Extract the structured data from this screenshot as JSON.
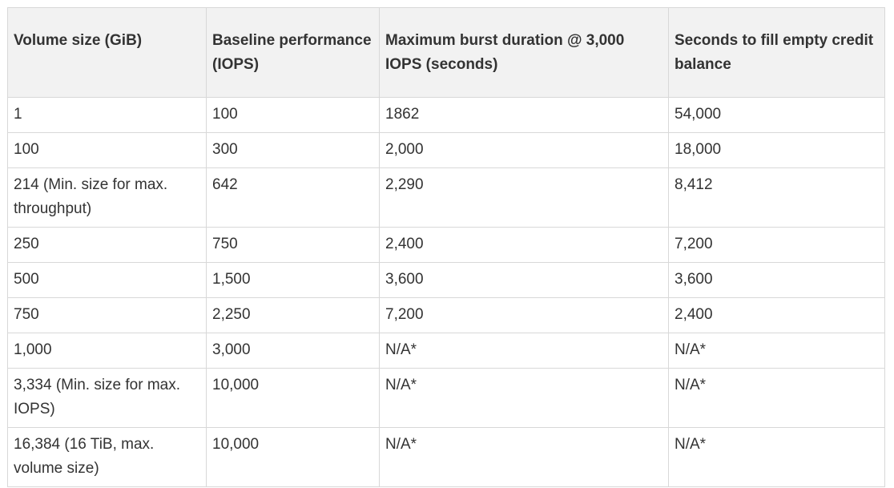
{
  "table": {
    "headers": [
      "Volume size (GiB)",
      "Baseline performance (IOPS)",
      "Maximum burst duration @ 3,000 IOPS (seconds)",
      "Seconds to fill empty credit balance"
    ],
    "rows": [
      [
        "1",
        "100",
        "1862",
        "54,000"
      ],
      [
        "100",
        "300",
        "2,000",
        "18,000"
      ],
      [
        "214 (Min. size for max. throughput)",
        "642",
        "2,290",
        "8,412"
      ],
      [
        "250",
        "750",
        "2,400",
        "7,200"
      ],
      [
        "500",
        "1,500",
        "3,600",
        "3,600"
      ],
      [
        "750",
        "2,250",
        "7,200",
        "2,400"
      ],
      [
        "1,000",
        "3,000",
        "N/A*",
        "N/A*"
      ],
      [
        "3,334 (Min. size for max. IOPS)",
        "10,000",
        "N/A*",
        "N/A*"
      ],
      [
        "16,384 (16 TiB, max. volume size)",
        "10,000",
        "N/A*",
        "N/A*"
      ]
    ]
  },
  "colors": {
    "header_background": "#f2f2f2",
    "border": "#d8d8d8",
    "text": "#333333"
  }
}
